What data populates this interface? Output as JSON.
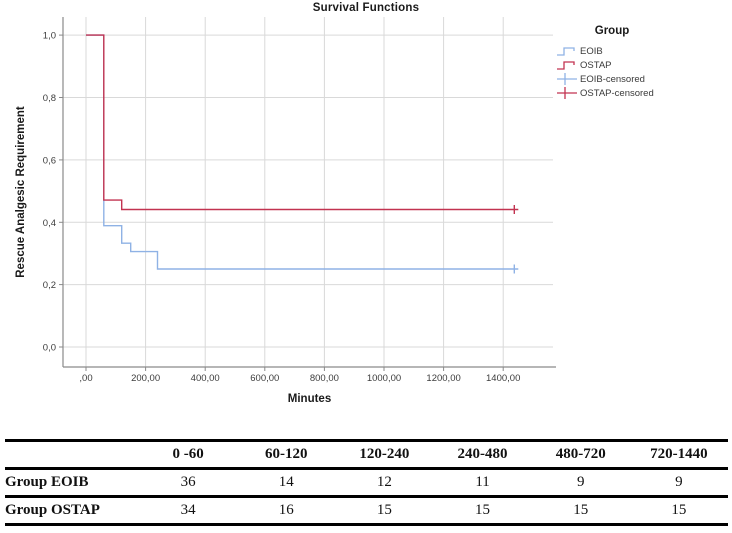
{
  "chart": {
    "title": "Survival Functions",
    "x_label": "Minutes",
    "y_label": "Rescue Analgesic Requirement",
    "legend": {
      "title": "Group",
      "entries": [
        {
          "label": "EOIB",
          "color": "#8fb2e5",
          "symbol": "step-line"
        },
        {
          "label": "OSTAP",
          "color": "#c23350",
          "symbol": "step-line"
        },
        {
          "label": "EOIB-censored",
          "color": "#8fb2e5",
          "symbol": "plus-line"
        },
        {
          "label": "OSTAP-censored",
          "color": "#c23350",
          "symbol": "plus-line"
        }
      ]
    }
  },
  "chart_data": {
    "type": "line",
    "subtype": "kaplan_meier_step",
    "title": "Survival Functions",
    "xlabel": "Minutes",
    "ylabel": "Rescue Analgesic Requirement",
    "xlim": [
      -77,
      1577
    ],
    "ylim": [
      -0.064,
      1.058
    ],
    "grid": true,
    "legend_position": "right",
    "x_ticks": [
      {
        "value": 0,
        "label": ",00"
      },
      {
        "value": 200,
        "label": "200,00"
      },
      {
        "value": 400,
        "label": "400,00"
      },
      {
        "value": 600,
        "label": "600,00"
      },
      {
        "value": 800,
        "label": "800,00"
      },
      {
        "value": 1000,
        "label": "1000,00"
      },
      {
        "value": 1200,
        "label": "1200,00"
      },
      {
        "value": 1400,
        "label": "1400,00"
      }
    ],
    "y_ticks": [
      {
        "value": 0.0,
        "label": "0,0"
      },
      {
        "value": 0.2,
        "label": "0,2"
      },
      {
        "value": 0.4,
        "label": "0,4"
      },
      {
        "value": 0.6,
        "label": "0,6"
      },
      {
        "value": 0.8,
        "label": "0,8"
      },
      {
        "value": 1.0,
        "label": "1,0"
      }
    ],
    "series": [
      {
        "name": "EOIB",
        "color": "#8fb2e5",
        "steps": [
          [
            0,
            1.0
          ],
          [
            60,
            0.389
          ],
          [
            120,
            0.333
          ],
          [
            150,
            0.306
          ],
          [
            240,
            0.25
          ]
        ],
        "censored": [
          [
            1437,
            0.25
          ]
        ]
      },
      {
        "name": "OSTAP",
        "color": "#c23350",
        "steps": [
          [
            0,
            1.0
          ],
          [
            60,
            0.471
          ],
          [
            120,
            0.441
          ]
        ],
        "censored": [
          [
            1437,
            0.441
          ]
        ]
      }
    ]
  },
  "table": {
    "headers": [
      "",
      "0 -60",
      "60-120",
      "120-240",
      "240-480",
      "480-720",
      "720-1440"
    ],
    "rows": [
      {
        "label": "Group EOIB",
        "values": [
          "36",
          "14",
          "12",
          "11",
          "9",
          "9"
        ]
      },
      {
        "label": "Group OSTAP",
        "values": [
          "34",
          "16",
          "15",
          "15",
          "15",
          "15"
        ]
      }
    ]
  },
  "colors": {
    "grid": "#d9d9d9",
    "axis": "#8a8a8a",
    "tick_text": "#3c3c3c",
    "eoib": "#8fb2e5",
    "ostap": "#c23350"
  }
}
